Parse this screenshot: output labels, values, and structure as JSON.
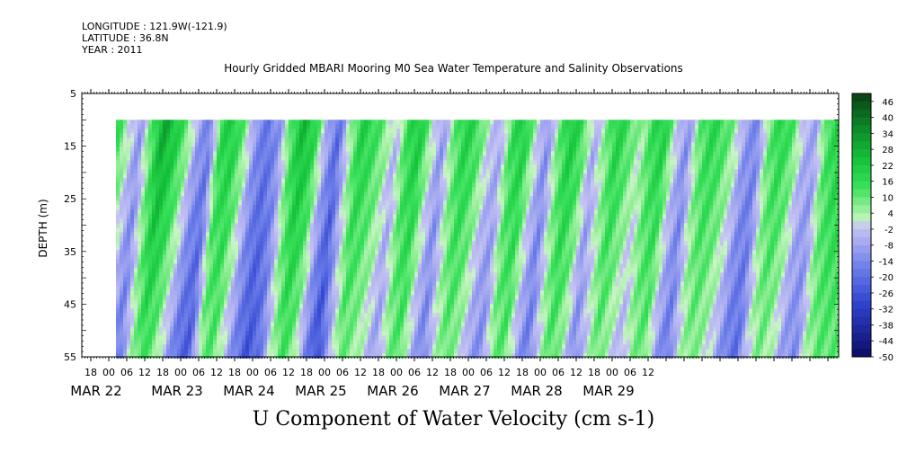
{
  "header": {
    "longitude": "LONGITUDE : 121.9W(-121.9)",
    "latitude": "LATITUDE : 36.8N",
    "year": "YEAR : 2011"
  },
  "chart_data": {
    "type": "heatmap",
    "title": "Hourly Gridded MBARI Mooring M0 Sea Water Temperature and Salinity Observations",
    "xlabel": "U Component of Water Velocity (cm s-1)",
    "ylabel": "DEPTH (m)",
    "y_ticks": [
      5,
      15,
      25,
      35,
      45,
      55
    ],
    "ylim": [
      5,
      55
    ],
    "y_reversed": true,
    "data_depth_range": [
      10,
      55
    ],
    "hour_ticks": [
      "18",
      "00",
      "06",
      "12",
      "18",
      "00",
      "06",
      "12",
      "18",
      "00",
      "06",
      "12",
      "18",
      "00",
      "06",
      "12",
      "18",
      "00",
      "06",
      "12",
      "18",
      "00",
      "06",
      "12",
      "18",
      "00",
      "06",
      "12",
      "18",
      "00",
      "06",
      "12"
    ],
    "date_labels": [
      "MAR 22",
      "MAR 23",
      "MAR 24",
      "MAR 25",
      "MAR 26",
      "MAR 27",
      "MAR 28",
      "MAR 29"
    ],
    "colorbar_labels": [
      "46",
      "40",
      "34",
      "28",
      "22",
      "16",
      "10",
      "4",
      "-2",
      "-8",
      "-14",
      "-20",
      "-26",
      "-32",
      "-38",
      "-44",
      "-50"
    ],
    "colorbar_range": [
      -50,
      49
    ],
    "colors": {
      "positive_dark": "#0a3d14",
      "positive_mid": "#1fd840",
      "positive_light": "#b9f5b9",
      "negative_light": "#b8b8f2",
      "negative_mid": "#5a6fe6",
      "negative_dark": "#0b0b66"
    },
    "velocity_profile_time_hours": [
      0,
      3,
      6,
      9,
      12,
      15,
      18,
      21,
      24,
      27,
      30,
      33,
      36,
      39,
      42,
      45,
      48,
      51,
      54,
      57,
      60,
      63,
      66,
      69,
      72,
      75,
      78,
      81,
      84,
      87,
      90,
      93,
      96,
      99,
      102,
      105,
      108,
      111,
      114,
      117,
      120,
      123,
      126,
      129,
      132,
      135,
      138,
      141,
      144,
      147,
      150,
      153,
      156,
      159,
      162,
      165,
      168,
      171,
      174,
      177,
      180,
      183,
      186
    ],
    "velocity_surface_cms": [
      16,
      2,
      -10,
      12,
      30,
      22,
      10,
      -8,
      -16,
      18,
      20,
      8,
      -12,
      -18,
      -10,
      14,
      26,
      18,
      -6,
      -20,
      4,
      20,
      16,
      8,
      -4,
      16,
      22,
      4,
      -10,
      10,
      20,
      14,
      0,
      -6,
      16,
      20,
      2,
      -12,
      10,
      22,
      14,
      -6,
      8,
      20,
      12,
      4,
      16,
      20,
      0,
      -12,
      10,
      18,
      14,
      6,
      -10,
      -14,
      10,
      18,
      12,
      -4,
      -8,
      14,
      20
    ],
    "velocity_bottom_cms": [
      10,
      -4,
      -18,
      2,
      14,
      8,
      -6,
      -20,
      -24,
      6,
      12,
      -2,
      -16,
      -26,
      -20,
      0,
      14,
      6,
      -14,
      -28,
      -8,
      10,
      6,
      0,
      -10,
      6,
      12,
      -4,
      -16,
      0,
      10,
      4,
      -8,
      -14,
      6,
      12,
      -6,
      -18,
      0,
      12,
      4,
      -14,
      -2,
      10,
      2,
      -6,
      6,
      10,
      -8,
      -18,
      0,
      8,
      4,
      -4,
      -16,
      -20,
      0,
      8,
      2,
      -10,
      -14,
      4,
      10
    ]
  }
}
